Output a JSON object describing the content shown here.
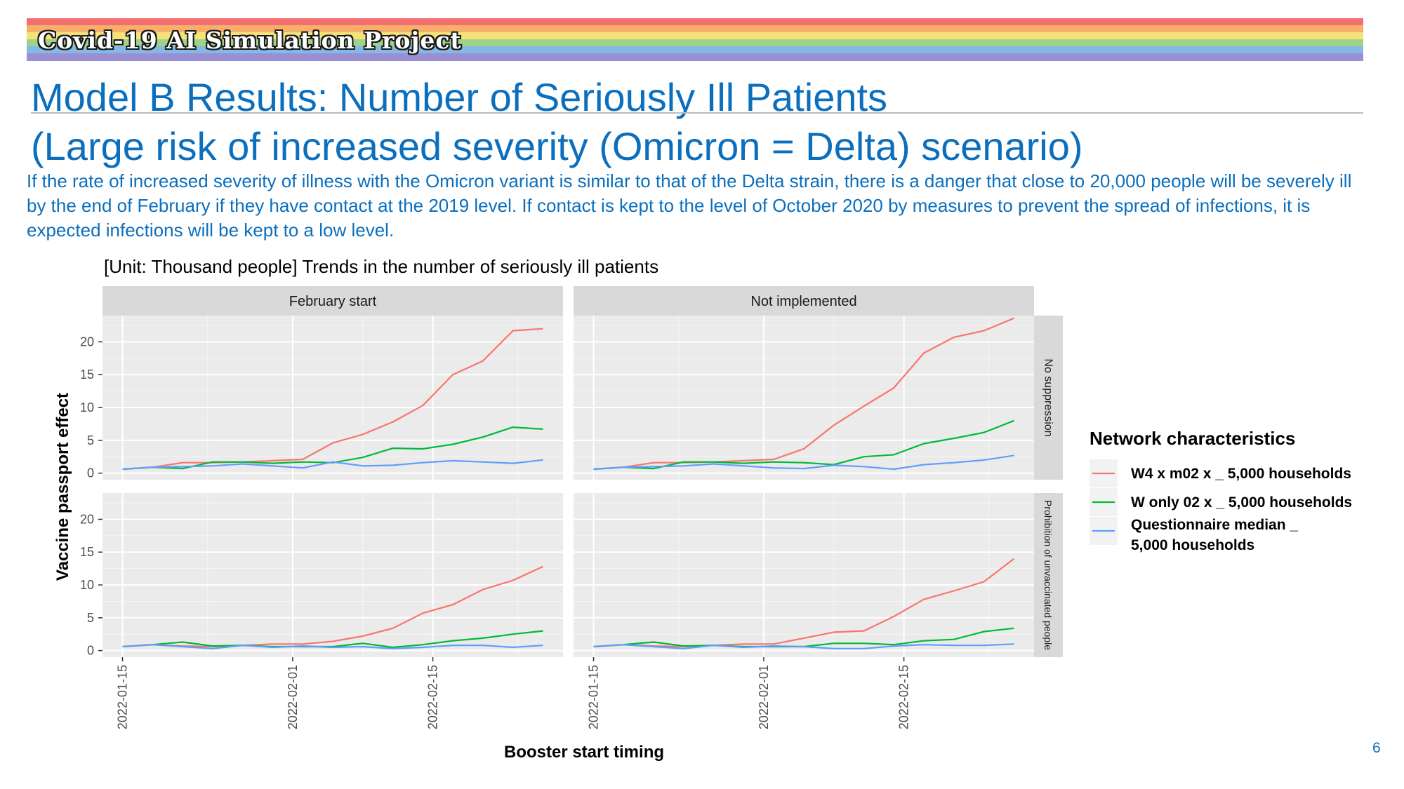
{
  "header": {
    "banner_title": "Covid-19 AI Simulation Project",
    "banner_colors": [
      "#f46f6f",
      "#f7b06a",
      "#f5e27a",
      "#9fd38a",
      "#84b8e6",
      "#9b8fd4"
    ],
    "title_line1": "Model B Results: Number of Seriously Ill Patients",
    "title_line2": "(Large risk of increased severity (Omicron = Delta) scenario)",
    "description": "If the rate of increased severity of illness with the Omicron variant is similar to that of the Delta strain, there is a danger that close to 20,000 people will be severely ill by the end of February if they have contact at the 2019 level. If contact is kept to the level of October 2020 by measures to prevent the spread of infections, it is expected infections will be kept to a low level."
  },
  "page_number": "6",
  "chart_data": {
    "type": "line",
    "title": "[Unit: Thousand people] Trends in the number of seriously ill patients",
    "xlabel": "Booster start timing",
    "ylabel": "Vaccine passport effect",
    "column_facets": [
      "February start",
      "Not implemented"
    ],
    "row_facets": [
      "No suppression",
      "Prohibition of unvaccinated people"
    ],
    "x": [
      "2022-01-15",
      "2022-01-18",
      "2022-01-21",
      "2022-01-24",
      "2022-01-27",
      "2022-01-30",
      "2022-02-02",
      "2022-02-05",
      "2022-02-08",
      "2022-02-11",
      "2022-02-14",
      "2022-02-17",
      "2022-02-20",
      "2022-02-23",
      "2022-02-26"
    ],
    "x_ticks": [
      "2022-01-15",
      "2022-02-01",
      "2022-02-15"
    ],
    "xlim": [
      "2022-01-13",
      "2022-02-28"
    ],
    "ylim": [
      -1,
      24
    ],
    "y_ticks": [
      0,
      5,
      10,
      15,
      20
    ],
    "grid": true,
    "legend": {
      "title": "Network characteristics",
      "position": "right",
      "entries": [
        "W4 x m02 x _ 5,000 households",
        "W only 02 x _ 5,000 households",
        "Questionnaire median _ 5,000 households"
      ]
    },
    "colors": [
      "#f8766d",
      "#00ba38",
      "#619cff"
    ],
    "panels": [
      {
        "col": "February start",
        "row": "No suppression",
        "series": [
          {
            "name": "W4 x m02 x _ 5,000 households",
            "values": [
              0.6,
              0.9,
              1.6,
              1.6,
              1.7,
              1.9,
              2.1,
              4.6,
              5.9,
              7.8,
              10.3,
              15.0,
              17.1,
              21.7,
              22.0
            ]
          },
          {
            "name": "W only 02 x _ 5,000 households",
            "values": [
              0.6,
              0.9,
              0.7,
              1.7,
              1.7,
              1.5,
              1.7,
              1.6,
              2.4,
              3.8,
              3.7,
              4.4,
              5.5,
              7.0,
              6.7
            ]
          },
          {
            "name": "Questionnaire median _ 5,000 households",
            "values": [
              0.6,
              0.9,
              1.0,
              1.1,
              1.4,
              1.1,
              0.8,
              1.7,
              1.1,
              1.2,
              1.6,
              1.9,
              1.7,
              1.5,
              2.0
            ]
          }
        ]
      },
      {
        "col": "Not implemented",
        "row": "No suppression",
        "series": [
          {
            "name": "W4 x m02 x _ 5,000 households",
            "values": [
              0.6,
              0.9,
              1.6,
              1.6,
              1.7,
              1.9,
              2.1,
              3.7,
              7.3,
              10.2,
              13.0,
              18.3,
              20.7,
              21.7,
              23.6
            ]
          },
          {
            "name": "W only 02 x _ 5,000 households",
            "values": [
              0.6,
              0.9,
              0.7,
              1.7,
              1.7,
              1.5,
              1.7,
              1.6,
              1.3,
              2.5,
              2.8,
              4.5,
              5.3,
              6.2,
              8.0
            ]
          },
          {
            "name": "Questionnaire median _ 5,000 households",
            "values": [
              0.6,
              0.9,
              1.0,
              1.1,
              1.4,
              1.1,
              0.8,
              0.7,
              1.2,
              1.0,
              0.6,
              1.3,
              1.6,
              2.0,
              2.7
            ]
          }
        ]
      },
      {
        "col": "February start",
        "row": "Prohibition of unvaccinated people",
        "series": [
          {
            "name": "W4 x m02 x _ 5,000 households",
            "values": [
              0.6,
              0.9,
              0.7,
              0.6,
              0.8,
              1.0,
              1.0,
              1.4,
              2.2,
              3.4,
              5.7,
              7.0,
              9.3,
              10.7,
              12.8
            ]
          },
          {
            "name": "W only 02 x _ 5,000 households",
            "values": [
              0.6,
              0.9,
              1.3,
              0.7,
              0.8,
              0.6,
              0.6,
              0.6,
              1.1,
              0.5,
              0.9,
              1.5,
              1.9,
              2.5,
              3.0
            ]
          },
          {
            "name": "Questionnaire median _ 5,000 households",
            "values": [
              0.6,
              0.9,
              0.6,
              0.3,
              0.8,
              0.5,
              0.7,
              0.5,
              0.6,
              0.3,
              0.5,
              0.8,
              0.8,
              0.5,
              0.8
            ]
          }
        ]
      },
      {
        "col": "Not implemented",
        "row": "Prohibition of unvaccinated people",
        "series": [
          {
            "name": "W4 x m02 x _ 5,000 households",
            "values": [
              0.6,
              0.9,
              0.7,
              0.6,
              0.8,
              1.0,
              1.0,
              1.9,
              2.8,
              3.0,
              5.2,
              7.8,
              9.1,
              10.5,
              14.0
            ]
          },
          {
            "name": "W only 02 x _ 5,000 households",
            "values": [
              0.6,
              0.9,
              1.3,
              0.7,
              0.8,
              0.6,
              0.6,
              0.6,
              1.1,
              1.1,
              0.9,
              1.5,
              1.7,
              2.9,
              3.4
            ]
          },
          {
            "name": "Questionnaire median _ 5,000 households",
            "values": [
              0.6,
              0.9,
              0.6,
              0.3,
              0.8,
              0.5,
              0.7,
              0.6,
              0.3,
              0.3,
              0.7,
              0.9,
              0.8,
              0.8,
              1.0
            ]
          }
        ]
      }
    ]
  }
}
